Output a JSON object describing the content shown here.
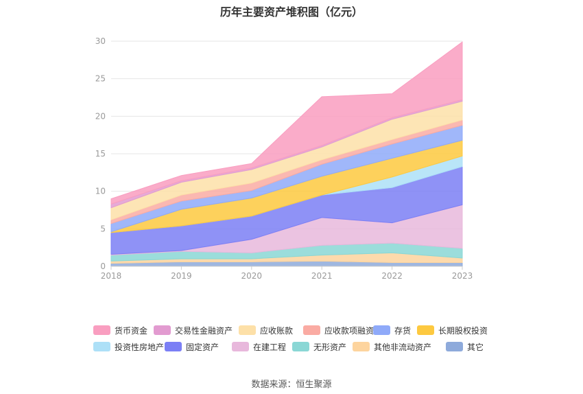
{
  "title": "历年主要资产堆积图（亿元）",
  "source": "数据来源：恒生聚源",
  "chart_data": {
    "type": "area",
    "stacked": true,
    "x": [
      "2018",
      "2019",
      "2020",
      "2021",
      "2022",
      "2023"
    ],
    "ylim": [
      0,
      30
    ],
    "yticks": [
      0,
      5,
      10,
      15,
      20,
      25,
      30
    ],
    "grid": true,
    "legend_position": "bottom",
    "series": [
      {
        "name": "其它",
        "color": "#8eaadb",
        "values": [
          0.4,
          0.6,
          0.6,
          0.7,
          0.5,
          0.5
        ]
      },
      {
        "name": "其他非流动资产",
        "color": "#fdd49e",
        "values": [
          0.3,
          0.4,
          0.4,
          0.8,
          1.3,
          0.6
        ]
      },
      {
        "name": "无形资产",
        "color": "#8ad7d5",
        "values": [
          0.8,
          1.0,
          0.8,
          1.3,
          1.3,
          1.3
        ]
      },
      {
        "name": "在建工程",
        "color": "#e8b8dc",
        "values": [
          0.1,
          0.1,
          1.8,
          3.7,
          2.7,
          5.8
        ]
      },
      {
        "name": "固定资产",
        "color": "#7b7ff5",
        "values": [
          2.9,
          3.3,
          3.1,
          3.0,
          4.7,
          5.1
        ]
      },
      {
        "name": "投资性房地产",
        "color": "#ade0f7",
        "values": [
          0.0,
          0.0,
          0.0,
          0.0,
          1.4,
          1.4
        ]
      },
      {
        "name": "长期股权投资",
        "color": "#fdc940",
        "values": [
          0.1,
          2.2,
          2.4,
          2.5,
          2.5,
          2.1
        ]
      },
      {
        "name": "存货",
        "color": "#8faaf9",
        "values": [
          1.1,
          1.1,
          1.0,
          1.6,
          1.9,
          2.0
        ]
      },
      {
        "name": "应收款项融资",
        "color": "#faaba3",
        "values": [
          0.5,
          0.8,
          1.0,
          0.6,
          0.6,
          0.7
        ]
      },
      {
        "name": "应收账款",
        "color": "#fde0a8",
        "values": [
          1.6,
          1.7,
          1.8,
          1.7,
          2.7,
          2.5
        ]
      },
      {
        "name": "交易性金融资产",
        "color": "#e29bd0",
        "values": [
          0.5,
          0.2,
          0.2,
          0.2,
          0.2,
          0.2
        ]
      },
      {
        "name": "货币资金",
        "color": "#f99ec0",
        "values": [
          0.7,
          0.7,
          0.6,
          6.5,
          3.2,
          7.7
        ]
      }
    ],
    "legend_order": [
      "货币资金",
      "交易性金融资产",
      "应收账款",
      "应收款项融资",
      "存货",
      "长期股权投资",
      "投资性房地产",
      "固定资产",
      "在建工程",
      "无形资产",
      "其他非流动资产",
      "其它"
    ]
  }
}
